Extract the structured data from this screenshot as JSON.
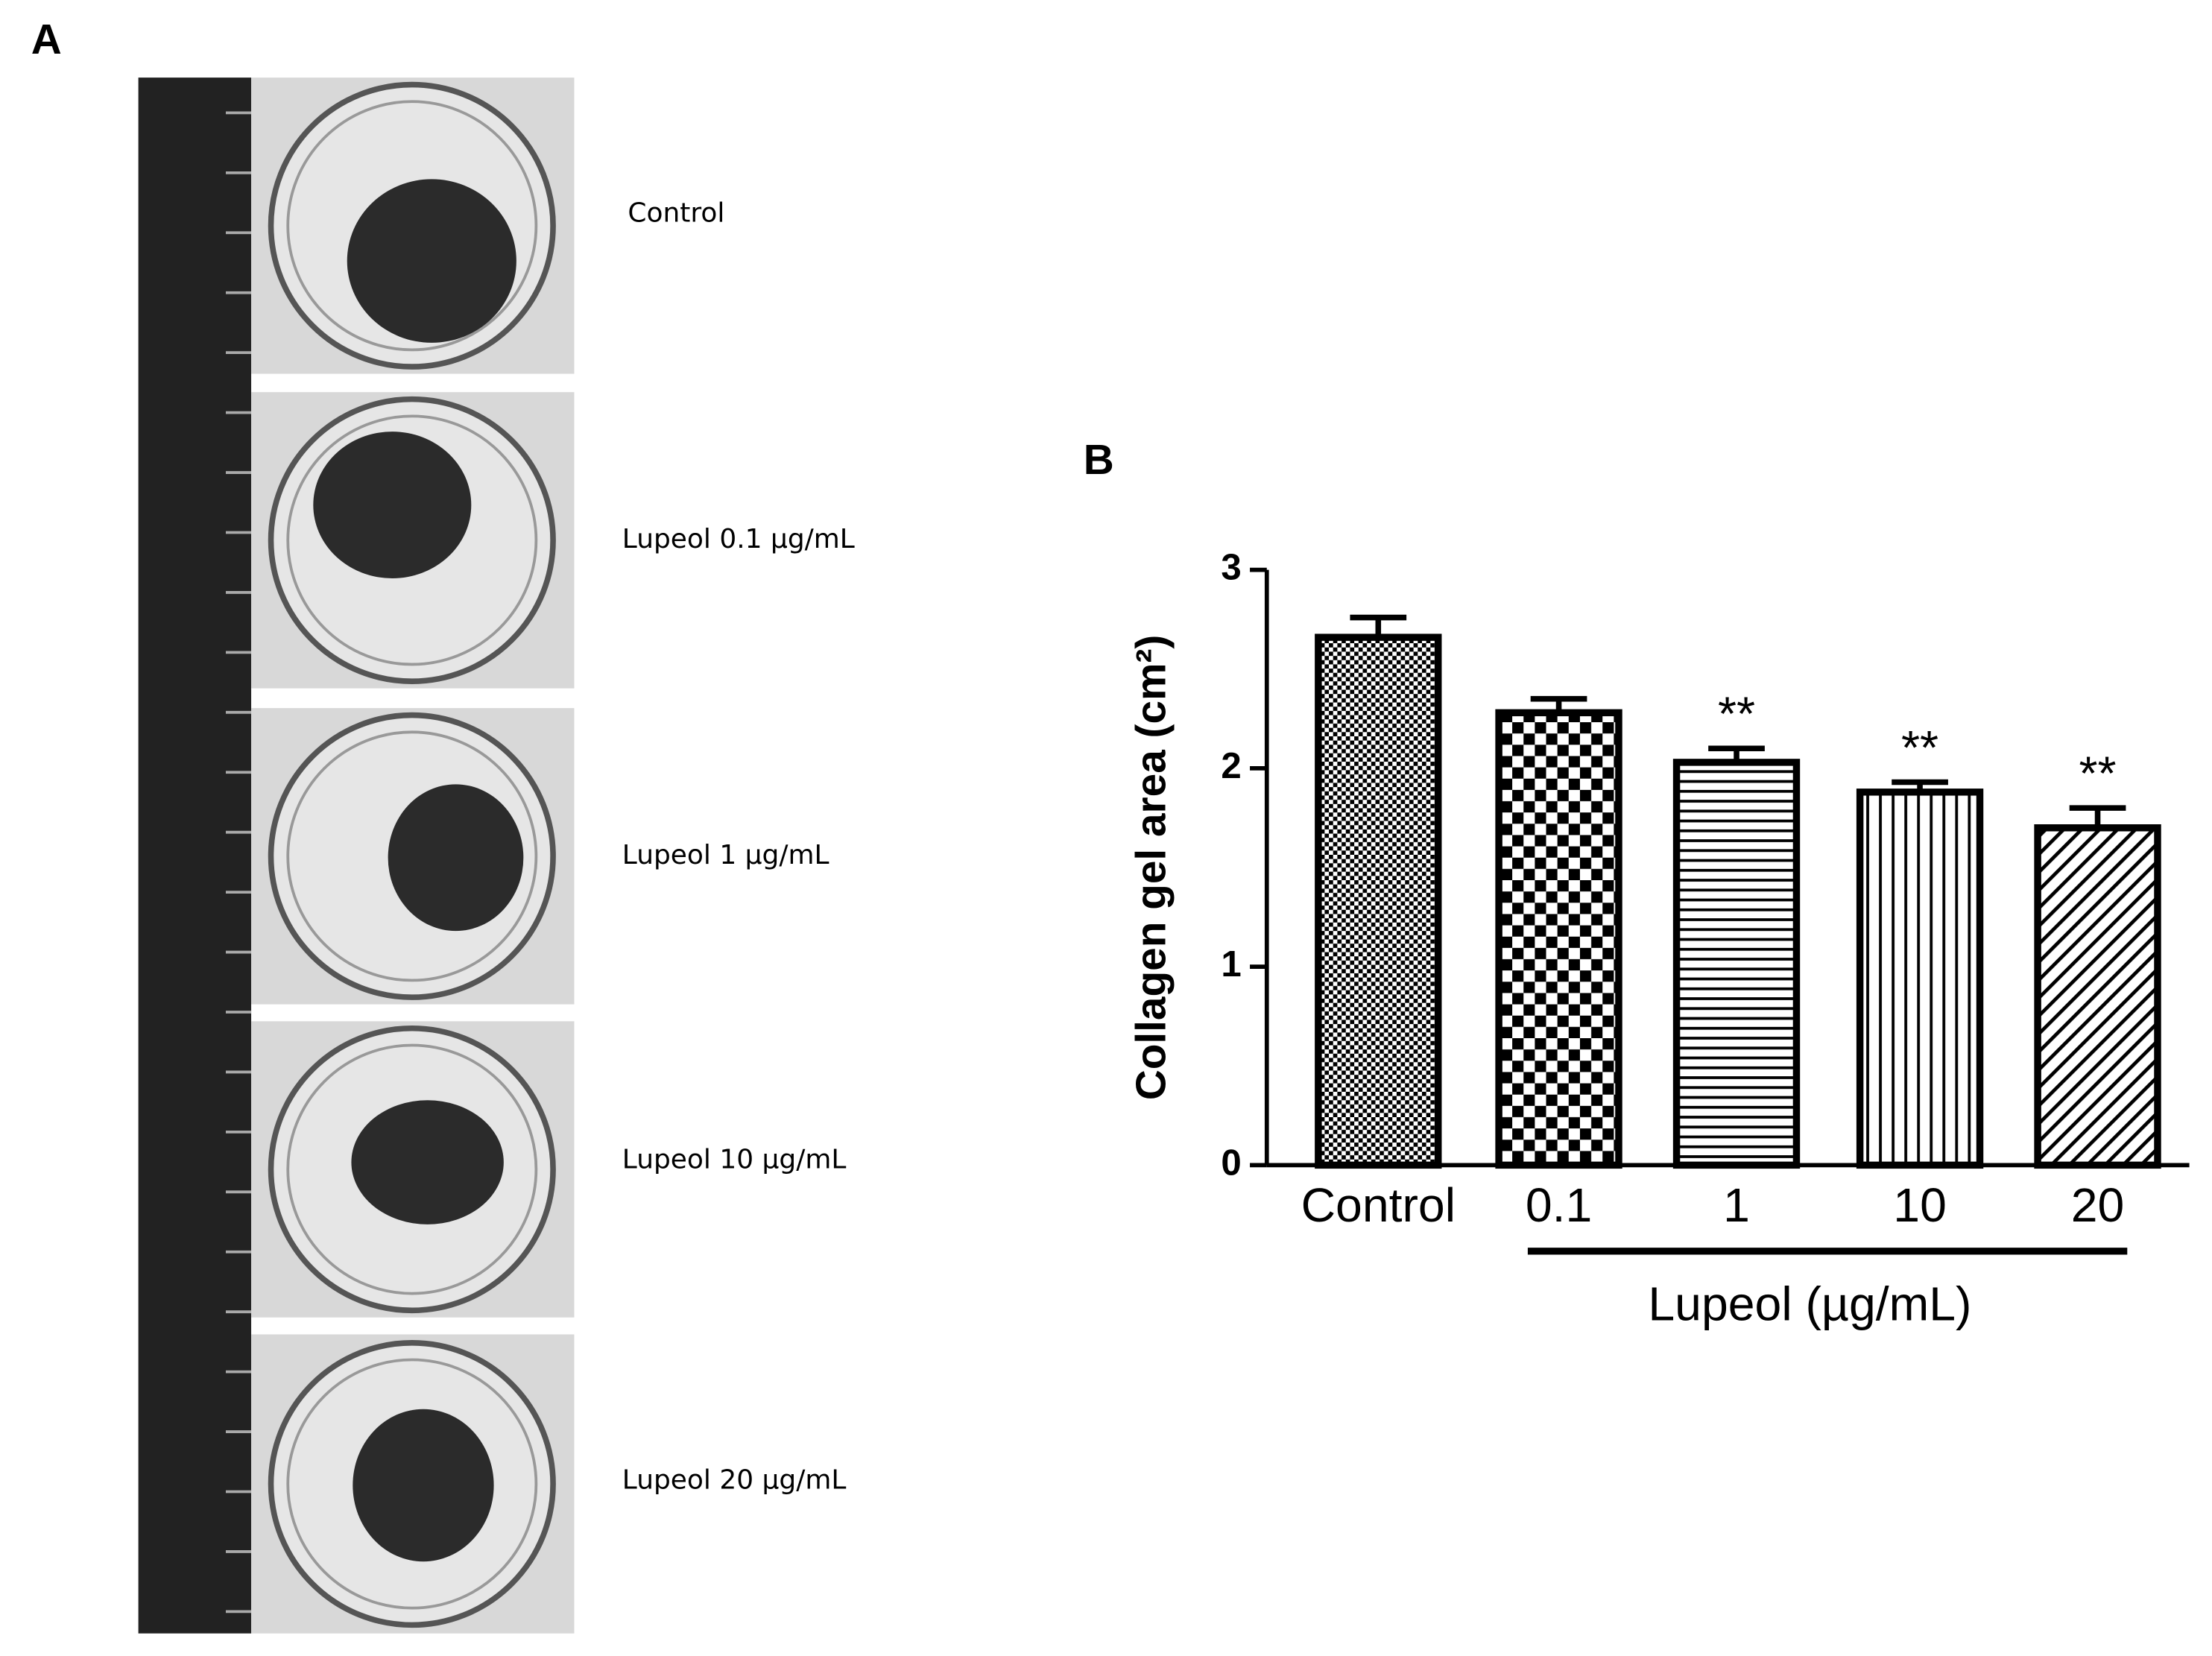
{
  "panel_a": {
    "label": "A",
    "conditions": [
      "Control",
      "Lupeol 0.1 µg/mL",
      "Lupeol 1 µg/mL",
      "Lupeol 10 µg/mL",
      "Lupeol 20 µg/mL"
    ]
  },
  "chart_data": {
    "type": "bar",
    "panel_label": "B",
    "y_label": "Collagen gel area (cm²)",
    "categories": [
      "Control",
      "0.1",
      "1",
      "10",
      "20"
    ],
    "values": [
      2.66,
      2.28,
      2.03,
      1.88,
      1.7
    ],
    "errors": [
      0.1,
      0.07,
      0.07,
      0.05,
      0.1
    ],
    "significance": [
      null,
      null,
      "**",
      "**",
      "**"
    ],
    "group_label": "Lupeol (µg/mL)",
    "color": "#000000",
    "ylim": [
      0,
      3
    ],
    "yticks": [
      0,
      1,
      2,
      3
    ],
    "grid": false
  }
}
